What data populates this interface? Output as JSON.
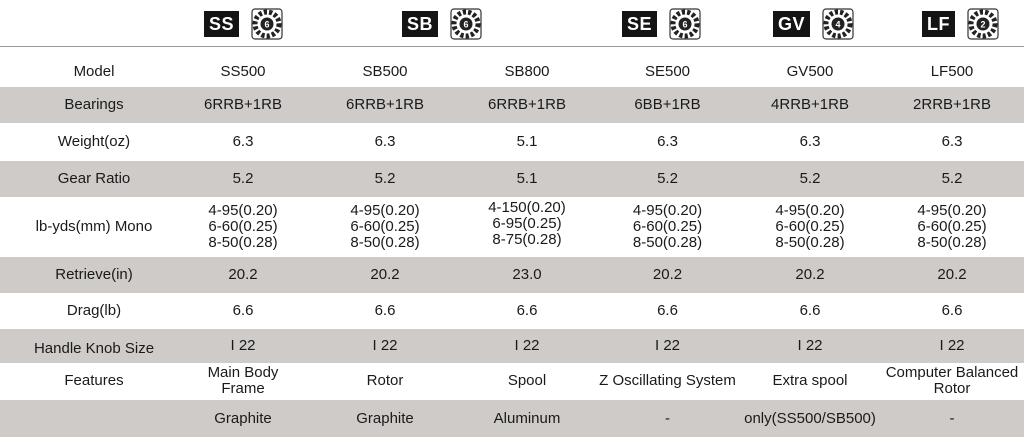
{
  "header": {
    "badges": [
      {
        "code": "SS",
        "gear_number": "6"
      },
      {
        "code": "SB",
        "gear_number": "6"
      },
      {
        "code": "SE",
        "gear_number": "6"
      },
      {
        "code": "GV",
        "gear_number": "4"
      },
      {
        "code": "LF",
        "gear_number": "2"
      }
    ]
  },
  "table": {
    "model": {
      "label": "Model",
      "values": [
        "SS500",
        "SB500",
        "SB800",
        "SE500",
        "GV500",
        "LF500"
      ]
    },
    "bearings": {
      "label": "Bearings",
      "values": [
        "6RRB+1RB",
        "6RRB+1RB",
        "6RRB+1RB",
        "6BB+1RB",
        "4RRB+1RB",
        "2RRB+1RB"
      ]
    },
    "weight": {
      "label": "Weight(oz)",
      "values": [
        "6.3",
        "6.3",
        "5.1",
        "6.3",
        "6.3",
        "6.3"
      ]
    },
    "gear_ratio": {
      "label": "Gear Ratio",
      "values": [
        "5.2",
        "5.2",
        "5.1",
        "5.2",
        "5.2",
        "5.2"
      ]
    },
    "mono": {
      "label": "lb-yds(mm) Mono",
      "values": [
        [
          "4-95(0.20)",
          "6-60(0.25)",
          "8-50(0.28)"
        ],
        [
          "4-95(0.20)",
          "6-60(0.25)",
          "8-50(0.28)"
        ],
        [
          "4-150(0.20)",
          "6-95(0.25)",
          "8-75(0.28)"
        ],
        [
          "4-95(0.20)",
          "6-60(0.25)",
          "8-50(0.28)"
        ],
        [
          "4-95(0.20)",
          "6-60(0.25)",
          "8-50(0.28)"
        ],
        [
          "4-95(0.20)",
          "6-60(0.25)",
          "8-50(0.28)"
        ]
      ]
    },
    "retrieve": {
      "label": "Retrieve(in)",
      "values": [
        "20.2",
        "20.2",
        "23.0",
        "20.2",
        "20.2",
        "20.2"
      ]
    },
    "drag": {
      "label": "Drag(lb)",
      "values": [
        "6.6",
        "6.6",
        "6.6",
        "6.6",
        "6.6",
        "6.6"
      ]
    },
    "knob": {
      "label": "Handle Knob Size",
      "values": [
        "I 22",
        "I 22",
        "I 22",
        "I 22",
        "I 22",
        "I 22"
      ]
    },
    "features": {
      "label": "Features",
      "values": [
        [
          "Main Body",
          "Frame"
        ],
        [
          "Rotor"
        ],
        [
          "Spool"
        ],
        [
          "Z Oscillating System"
        ],
        [
          "Extra spool"
        ],
        [
          "Computer Balanced",
          "Rotor"
        ]
      ]
    },
    "material": {
      "label": "",
      "values": [
        "Graphite",
        "Graphite",
        "Aluminum",
        "-",
        "only(SS500/SB500)",
        "-"
      ]
    }
  },
  "colors": {
    "shade": "#cfcbc8",
    "badge_bg": "#141414",
    "text": "#1a1a1a"
  }
}
